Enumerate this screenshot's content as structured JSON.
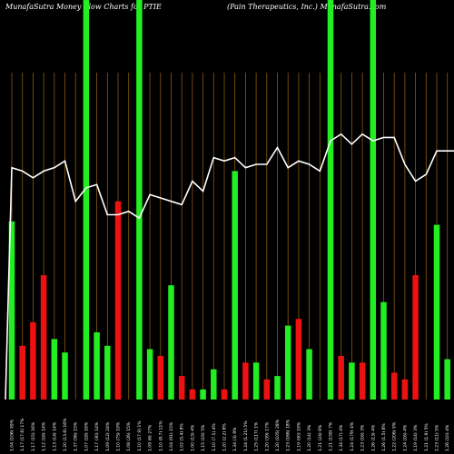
{
  "header": {
    "title_left": "MunafaSutra  Money  Flow  Charts for PTIE",
    "title_right": "(Pain  Therapeutics,  Inc.) MunafaSutra.com"
  },
  "colors": {
    "background": "#000000",
    "up": "#22ee22",
    "down": "#ee1111",
    "highlight": "#22ee22",
    "gridline": "#8a5a10",
    "line": "#ffffff"
  },
  "chart_data": {
    "type": "bar",
    "title": "MunafaSutra  Money  Flow  Charts for PTIE",
    "ylim": [
      0,
      100
    ],
    "highlight_indices": [
      7,
      12,
      30,
      34
    ],
    "categories": [
      "Fri 02/06/2019",
      "Thu 31/05/2019",
      "Wed 30/05/2019",
      "Tue 29/05/2019",
      "Mon 28/05/2019",
      "Fri 25/05/2019",
      "Thu 24/05/2019",
      "Wed 23/05/2019",
      "Tue 22/05/2019",
      "Mon 21/05/2019",
      "Fri 18/05/2019",
      "Thu 17/05/2019",
      "Wed 16/05/2019",
      "Tue 15/05/2019",
      "Mon 14/05/2019",
      "Fri 11/05/2019",
      "Thu 10/05/2019",
      "Wed 09/05/2019",
      "Tue 08/05/2019",
      "Mon 07/05/2019",
      "Fri 04/05/2019",
      "Thu 03/05/2019",
      "Wed 02/05/2019",
      "Tue 01/05/2019",
      "Mon 30/04/2019",
      "Fri 27/04/2019",
      "Thu 26/04/2019",
      "Wed 25/04/2019",
      "Tue 24/04/2019",
      "Mon 23/04/2019",
      "Fri 20/04/2019",
      "Thu 19/04/2019",
      "Wed 18/04/2019",
      "Tue 17/04/2019",
      "Mon 16/04/2019",
      "Fri 13/04/2019",
      "Thu 12/04/2019",
      "Wed 11/04/2019",
      "Tue 10/04/2019",
      "Mon 09/04/2019",
      "Fri 06/04/2019",
      "Thu 05/04/2019",
      "Wed 04/04/2019",
      "Tue 03/04/2019",
      "Mon 02/04/2019"
    ],
    "tick_labels": [
      "1.04 (106) 99%",
      "1.17 (17.6) 17%",
      "1.17 (15) 16%",
      "1.12 (16) 14%",
      "1.13 (14) 14%",
      "1.20 (13.6) 16%",
      "1.37 (56) 15%",
      "1.07 (18) 16%",
      "1.17 (30) 14%",
      "1.09 (12) 24%",
      "1.10 (75) 19%",
      "1.08 (26) 15%",
      "1.10 (17.9) 1%",
      "1.09 (6) 27%",
      "1.10 (8.7) 11%",
      "1.04 (91) 15%",
      "1.02 (5.4) 8%",
      "1.00 (13) 4%",
      "1.15 (19) 5%",
      "1.10 (7.1) 4%",
      "1.20 (2.2) 8%",
      "1.34 (3) 8%",
      "1.24 (1.21) 5%",
      "1.25 (117) 1%",
      "1.20 (39) 17%",
      "1.20 (105) 28%",
      "1.23 (166) 18%",
      "1.19 (90) 19%",
      "1.20 (14) 3%",
      "1.21 (24) 8%",
      "1.21 (159) 7%",
      "1.34 (17) 4%",
      "1.24 (179) 4%",
      "1.23 (16) 3%",
      "1.26 (13) 4%",
      "1.26 (1.5) 8%",
      "1.22 (206) 9%",
      "1.24 (16) 4%",
      "1.19 (14) 3%",
      "1.21 (1.9) 5%",
      "1.23 (11) 5%",
      "1.26 (10) 4%",
      "1.24 (7.6) 7%",
      "1.24 (156) 1%",
      "1.24 (100) 1%"
    ],
    "series": [
      {
        "values": [
          53,
          16,
          23,
          37,
          18,
          14,
          0,
          0,
          20,
          16,
          59,
          0,
          0,
          15,
          13,
          34,
          7,
          3,
          3,
          9,
          3,
          68,
          11,
          11,
          6,
          7,
          22,
          24,
          15,
          0,
          0,
          13,
          11,
          11,
          0,
          29,
          8,
          6,
          37,
          0,
          52,
          12,
          0,
          0,
          33
        ],
        "direction": [
          "up",
          "down",
          "down",
          "down",
          "up",
          "up",
          "up",
          "up",
          "up",
          "up",
          "down",
          "up",
          "up",
          "up",
          "down",
          "up",
          "down",
          "down",
          "up",
          "up",
          "down",
          "up",
          "down",
          "up",
          "down",
          "up",
          "up",
          "down",
          "up",
          "up",
          "up",
          "down",
          "up",
          "down",
          "up",
          "up",
          "down",
          "down",
          "down",
          "up",
          "up",
          "up",
          "up",
          "up",
          "up"
        ]
      },
      {
        "values": [
          69,
          68,
          66,
          68,
          69,
          71,
          59,
          63,
          64,
          55,
          55,
          56,
          54,
          61,
          60,
          59,
          58,
          65,
          62,
          72,
          71,
          72,
          69,
          70,
          70,
          75,
          69,
          71,
          70,
          68,
          77,
          79,
          76,
          79,
          77,
          78,
          78,
          70,
          65,
          67,
          74,
          74,
          74,
          74,
          74
        ]
      }
    ]
  }
}
